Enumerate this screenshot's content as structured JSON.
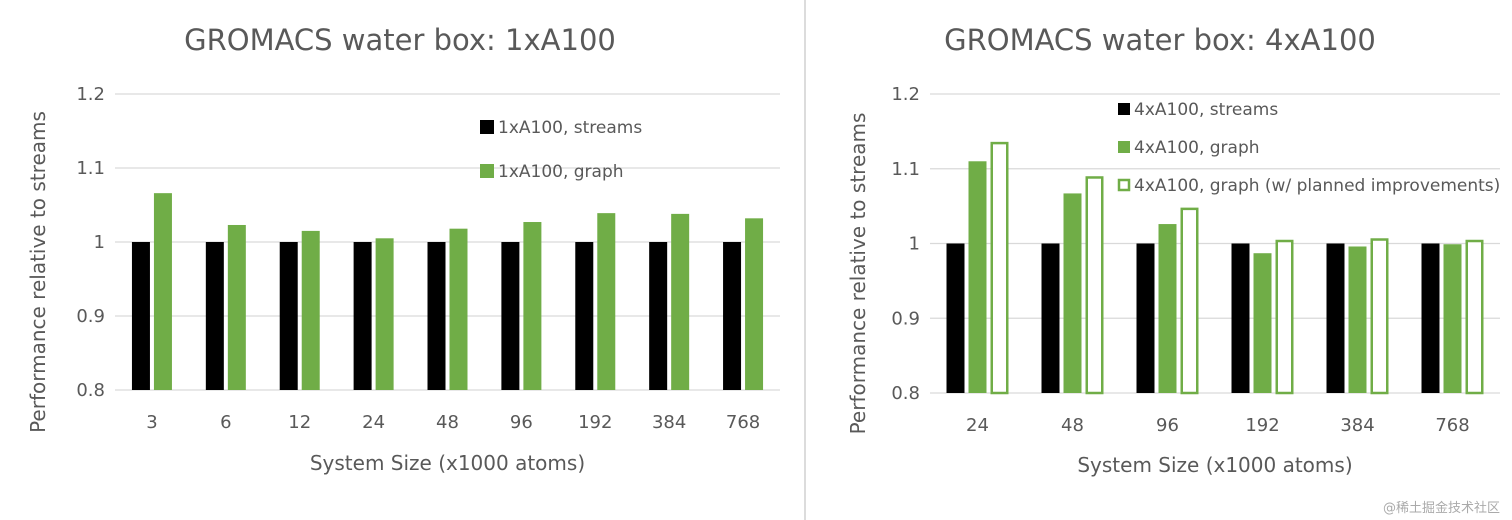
{
  "colors": {
    "streams": "#000000",
    "graph": "#70ad47",
    "grid": "#d9d9d9",
    "text": "#595959"
  },
  "watermark": "@稀土掘金技术社区",
  "chart_data": [
    {
      "type": "bar",
      "title": "GROMACS water box: 1xA100",
      "xlabel": "System Size (x1000 atoms)",
      "ylabel": "Performance relative to streams",
      "ylim": [
        0.8,
        1.2
      ],
      "yticks": [
        "0.8",
        "0.9",
        "1",
        "1.1",
        "1.2"
      ],
      "grid": true,
      "legend_placement": "top-right",
      "categories": [
        "3",
        "6",
        "12",
        "24",
        "48",
        "96",
        "192",
        "384",
        "768"
      ],
      "series": [
        {
          "name": "1xA100, streams",
          "style": "solid-black",
          "values": [
            1,
            1,
            1,
            1,
            1,
            1,
            1,
            1,
            1
          ]
        },
        {
          "name": "1xA100, graph",
          "style": "solid-green",
          "values": [
            1.066,
            1.023,
            1.015,
            1.005,
            1.018,
            1.027,
            1.039,
            1.038,
            1.032
          ]
        }
      ]
    },
    {
      "type": "bar",
      "title": "GROMACS water box: 4xA100",
      "xlabel": "System Size (x1000 atoms)",
      "ylabel": "Performance relative to streams",
      "ylim": [
        0.8,
        1.2
      ],
      "yticks": [
        "0.8",
        "0.9",
        "1",
        "1.1",
        "1.2"
      ],
      "grid": true,
      "legend_placement": "top-right",
      "categories": [
        "24",
        "48",
        "96",
        "192",
        "384",
        "768"
      ],
      "series": [
        {
          "name": "4xA100, streams",
          "style": "solid-black",
          "values": [
            1,
            1,
            1,
            1,
            1,
            1
          ]
        },
        {
          "name": "4xA100, graph",
          "style": "solid-green",
          "values": [
            1.11,
            1.067,
            1.026,
            0.987,
            0.996,
            0.999
          ]
        },
        {
          "name": "4xA100, graph (w/ planned improvements)",
          "style": "outline-green",
          "values": [
            1.136,
            1.09,
            1.048,
            1.005,
            1.007,
            1.005
          ]
        }
      ]
    }
  ]
}
